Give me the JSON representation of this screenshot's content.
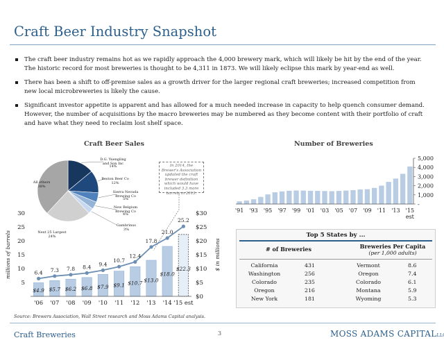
{
  "title": "Craft Beer Industry Snapshot",
  "bullets": [
    "The craft beer industry remains hot as we rapidly approach the 4,000 brewery mark, which will likely be hit by the end of the year.  The historic record for most breweries is thought to be 4,311 in 1873. We will likely eclipse this mark by year-end as well.",
    "There has been a shift to off-premise sales as a growth driver for the larger regional craft breweries; increased competition from new local microbreweries is likely the cause.",
    "Significant investor appetite is apparent and has allowed for a much needed increase in capacity to help quench consumer demand. However, the number of acquisitions by the macro breweries may be numbered as they become content with their portfolio of craft and have what they need to reclaim lost shelf space."
  ],
  "headings": {
    "sales": "Craft Beer Sales",
    "breweries": "Number of Breweries"
  },
  "callout": "In 2014, the Brewer's Association updated the craft brewer definition which would have included 3.3 more barrels in 2013.",
  "chart_data": [
    {
      "type": "pie",
      "name": "Craft Beer Sales share",
      "slices": [
        {
          "label": "D.G. Yuengling and Son Inc",
          "value": 14,
          "pct": "14%",
          "color": "#17375e"
        },
        {
          "label": "Boston Beer Co",
          "value": 12,
          "pct": "12%",
          "color": "#1f497d"
        },
        {
          "label": "Sierra Nevada Brewing Co",
          "value": 5,
          "pct": "5%",
          "color": "#4f81bd"
        },
        {
          "label": "New Belgium Brewing Co",
          "value": 4,
          "pct": "4%",
          "color": "#95b3d7"
        },
        {
          "label": "Gambrinus",
          "value": 3,
          "pct": "3%",
          "color": "#c6d9f1"
        },
        {
          "label": "Next 25 Largest",
          "value": 24,
          "pct": "24%",
          "color": "#d0d0d0"
        },
        {
          "label": "All others",
          "value": 38,
          "pct": "38%",
          "color": "#a6a6a6"
        }
      ]
    },
    {
      "type": "bar",
      "categories": [
        "'06",
        "'07",
        "'08",
        "'09",
        "'10",
        "'11",
        "'12",
        "'13",
        "'14",
        "'15 est"
      ],
      "series": [
        {
          "name": "sales",
          "values": [
            4.9,
            5.7,
            6.2,
            6.8,
            7.9,
            9.1,
            10.7,
            13.0,
            18.0,
            22.3
          ],
          "labels": [
            "$4.9",
            "$5.7",
            "$6.2",
            "$6.8",
            "$7.9",
            "$9.1",
            "$10.7",
            "$13.0",
            "$18.0",
            "$22.3"
          ]
        },
        {
          "name": "barrels",
          "type": "line",
          "values": [
            6.4,
            7.3,
            7.8,
            8.4,
            9.4,
            10.7,
            12.4,
            17.8,
            21.0,
            25.2
          ],
          "labels": [
            "6.4",
            "7.3",
            "7.8",
            "8.4",
            "9.4",
            "10.7",
            "12.4",
            "17.8",
            "21.0",
            "25.2"
          ]
        }
      ],
      "ylabel": "millions of barrels",
      "y2label": "$ in millions",
      "ylim": [
        0,
        30
      ],
      "yticks": [
        "5",
        "10",
        "15",
        "20",
        "25",
        "30"
      ],
      "y2lim": [
        0,
        30
      ],
      "y2ticks": [
        "$0",
        "$5",
        "$10",
        "$15",
        "$20",
        "$25",
        "$30"
      ],
      "estimate_index": 9
    },
    {
      "type": "bar",
      "x": [
        1991,
        1992,
        1993,
        1994,
        1995,
        1996,
        1997,
        1998,
        1999,
        2000,
        2001,
        2002,
        2003,
        2004,
        2005,
        2006,
        2007,
        2008,
        2009,
        2010,
        2011,
        2012,
        2013,
        2014,
        2015
      ],
      "xticks": [
        "'91",
        "'93",
        "'95",
        "'97",
        "'99",
        "'01",
        "'03",
        "'05",
        "'07",
        "'09",
        "'11",
        "'13",
        "'15"
      ],
      "xtick_note": "est",
      "values": [
        290,
        380,
        520,
        780,
        1050,
        1280,
        1380,
        1450,
        1480,
        1470,
        1450,
        1440,
        1420,
        1400,
        1430,
        1470,
        1520,
        1590,
        1620,
        1760,
        2010,
        2420,
        2780,
        3300,
        4100
      ],
      "ylim": [
        0,
        5000
      ],
      "yticks": [
        "-",
        "1,000",
        "2,000",
        "3,000",
        "4,000",
        "5,000"
      ]
    }
  ],
  "states": {
    "title": "Top 5 States by ...",
    "col1_header": "# of Breweries",
    "col2_header": "Breweries Per Capita",
    "col2_sub": "(per 1,000 adults)",
    "rows": [
      {
        "state": "California",
        "count": "431",
        "pc_state": "Vermont",
        "pc_value": "8.6"
      },
      {
        "state": "Washington",
        "count": "256",
        "pc_state": "Oregon",
        "pc_value": "7.4"
      },
      {
        "state": "Colorado",
        "count": "235",
        "pc_state": "Colorado",
        "pc_value": "6.1"
      },
      {
        "state": "Oregon",
        "count": "216",
        "pc_state": "Montana",
        "pc_value": "5.9"
      },
      {
        "state": "New York",
        "count": "181",
        "pc_state": "Wyoming",
        "pc_value": "5.3"
      }
    ]
  },
  "source": "Source: Brewers Association, Wall Street research and Moss Adams Capital analysis.",
  "footer": {
    "left": "Craft Breweries",
    "page": "3",
    "brand": "MOSS ADAMS CAPITAL",
    "brand_suffix": "LLC"
  },
  "colors": {
    "title": "#2c5f8c",
    "bar": "#b8cce4",
    "bar_edge": "#95b3d7",
    "line": "#6d8fb3",
    "dark_blue": "#17375e"
  }
}
